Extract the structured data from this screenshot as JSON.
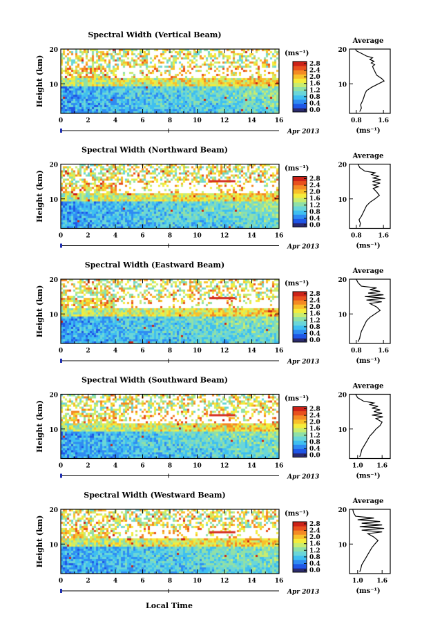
{
  "figure": {
    "x_axis_title": "Local Time",
    "date_label": "Apr 2013"
  },
  "colorbar": {
    "unit": "(ms⁻¹)",
    "tick_labels": [
      "2.8",
      "2.4",
      "2.0",
      "1.6",
      "1.2",
      "0.8",
      "0.4",
      "0.0"
    ],
    "colors": [
      "#2b2b6e",
      "#1f2fb0",
      "#1f57e6",
      "#2f8cf2",
      "#3fbff0",
      "#6ad6d8",
      "#8fe0a8",
      "#c8ec70",
      "#f4ec3c",
      "#f8c02a",
      "#f48a24",
      "#e8501e",
      "#cc2218"
    ]
  },
  "chart_data": [
    {
      "type": "heatmap",
      "title": "Spectral Width (Vertical Beam)",
      "ylabel": "Height (km)",
      "x_ticks": [
        "0",
        "2",
        "4",
        "6",
        "8",
        "10",
        "12",
        "14",
        "16"
      ],
      "y_ticks": [
        "10",
        "20"
      ],
      "xlim": [
        0,
        16
      ],
      "ylim": [
        1.5,
        20
      ],
      "avg": {
        "title": "Average",
        "xlabel": "(ms⁻¹)",
        "x_ticks": [
          "0.8",
          "1.6"
        ],
        "xlim": [
          0.6,
          1.8
        ],
        "y_ticks": [
          "10",
          "20"
        ],
        "profile": [
          [
            0.9,
            2
          ],
          [
            0.95,
            3
          ],
          [
            0.93,
            4
          ],
          [
            0.98,
            5
          ],
          [
            1.02,
            6
          ],
          [
            1.05,
            7
          ],
          [
            1.1,
            8
          ],
          [
            1.25,
            9
          ],
          [
            1.45,
            10
          ],
          [
            1.62,
            10.8
          ],
          [
            1.55,
            11.5
          ],
          [
            1.4,
            12.5
          ],
          [
            1.35,
            13.5
          ],
          [
            1.3,
            14.5
          ],
          [
            1.28,
            15
          ],
          [
            1.34,
            15.5
          ],
          [
            1.24,
            16
          ],
          [
            1.32,
            16.5
          ],
          [
            1.2,
            17
          ],
          [
            1.28,
            17.5
          ],
          [
            1.1,
            18
          ],
          [
            1.0,
            18.5
          ],
          [
            0.9,
            19
          ],
          [
            0.8,
            19.5
          ],
          [
            0.78,
            20
          ]
        ]
      }
    },
    {
      "type": "heatmap",
      "title": "Spectral Width (Northward Beam)",
      "ylabel": "Height (km)",
      "x_ticks": [
        "0",
        "2",
        "4",
        "6",
        "8",
        "10",
        "12",
        "14",
        "16"
      ],
      "y_ticks": [
        "10",
        "20"
      ],
      "xlim": [
        0,
        16
      ],
      "ylim": [
        1.5,
        20
      ],
      "avg": {
        "title": "Average",
        "xlabel": "(ms⁻¹)",
        "x_ticks": [
          "0.8",
          "1.6"
        ],
        "xlim": [
          0.6,
          1.8
        ],
        "y_ticks": [
          "10",
          "20"
        ],
        "profile": [
          [
            0.9,
            2
          ],
          [
            0.92,
            3
          ],
          [
            0.88,
            4
          ],
          [
            0.95,
            5
          ],
          [
            1.0,
            6
          ],
          [
            1.05,
            7
          ],
          [
            1.1,
            8
          ],
          [
            1.2,
            9
          ],
          [
            1.35,
            10
          ],
          [
            1.48,
            11
          ],
          [
            1.4,
            12
          ],
          [
            1.3,
            13
          ],
          [
            1.45,
            13.5
          ],
          [
            1.3,
            14
          ],
          [
            1.5,
            14.5
          ],
          [
            1.28,
            15
          ],
          [
            1.52,
            15.5
          ],
          [
            1.3,
            16
          ],
          [
            1.45,
            16.5
          ],
          [
            1.25,
            17
          ],
          [
            1.35,
            17.5
          ],
          [
            1.05,
            18
          ],
          [
            0.9,
            19
          ],
          [
            0.85,
            20
          ]
        ]
      }
    },
    {
      "type": "heatmap",
      "title": "Spectral Width (Eastward Beam)",
      "ylabel": "Height (km)",
      "x_ticks": [
        "0",
        "2",
        "4",
        "6",
        "8",
        "10",
        "12",
        "14",
        "16"
      ],
      "y_ticks": [
        "10",
        "20"
      ],
      "xlim": [
        0,
        16
      ],
      "ylim": [
        1.5,
        20
      ],
      "avg": {
        "title": "Average",
        "xlabel": "(ms⁻¹)",
        "x_ticks": [
          "0.8",
          "1.6"
        ],
        "xlim": [
          0.6,
          1.8
        ],
        "y_ticks": [
          "10",
          "20"
        ],
        "profile": [
          [
            0.85,
            2
          ],
          [
            0.9,
            3
          ],
          [
            0.92,
            4
          ],
          [
            0.95,
            5
          ],
          [
            1.0,
            6
          ],
          [
            1.05,
            7
          ],
          [
            1.1,
            8
          ],
          [
            1.2,
            9
          ],
          [
            1.35,
            10
          ],
          [
            1.5,
            11
          ],
          [
            1.4,
            12
          ],
          [
            1.2,
            13
          ],
          [
            1.55,
            13.5
          ],
          [
            1.1,
            14
          ],
          [
            1.65,
            14.5
          ],
          [
            1.05,
            15
          ],
          [
            1.6,
            15.5
          ],
          [
            1.15,
            16
          ],
          [
            1.5,
            16.5
          ],
          [
            1.2,
            17
          ],
          [
            1.4,
            17.5
          ],
          [
            0.95,
            18
          ],
          [
            0.85,
            19
          ],
          [
            0.8,
            20
          ]
        ]
      }
    },
    {
      "type": "heatmap",
      "title": "Spectral Width (Southward Beam)",
      "ylabel": "Height (km)",
      "x_ticks": [
        "0",
        "2",
        "4",
        "6",
        "8",
        "10",
        "12",
        "14",
        "16"
      ],
      "y_ticks": [
        "10",
        "20"
      ],
      "xlim": [
        0,
        16
      ],
      "ylim": [
        1.5,
        20
      ],
      "avg": {
        "title": "Average",
        "xlabel": "(ms⁻¹)",
        "x_ticks": [
          "1.0",
          "1.6"
        ],
        "xlim": [
          0.8,
          1.8
        ],
        "y_ticks": [
          "10",
          "20"
        ],
        "profile": [
          [
            1.05,
            2
          ],
          [
            1.08,
            3
          ],
          [
            1.1,
            4
          ],
          [
            1.15,
            5
          ],
          [
            1.2,
            6
          ],
          [
            1.25,
            7
          ],
          [
            1.3,
            8
          ],
          [
            1.38,
            9
          ],
          [
            1.45,
            10
          ],
          [
            1.55,
            11
          ],
          [
            1.6,
            12
          ],
          [
            1.45,
            13
          ],
          [
            1.62,
            13.5
          ],
          [
            1.35,
            14
          ],
          [
            1.6,
            14.5
          ],
          [
            1.4,
            15
          ],
          [
            1.55,
            15.5
          ],
          [
            1.35,
            16
          ],
          [
            1.5,
            16.5
          ],
          [
            1.3,
            17
          ],
          [
            1.4,
            17.5
          ],
          [
            1.15,
            18
          ],
          [
            1.0,
            19
          ],
          [
            0.95,
            20
          ]
        ]
      }
    },
    {
      "type": "heatmap",
      "title": "Spectral Width (Westward Beam)",
      "ylabel": "Height (km)",
      "x_ticks": [
        "0",
        "2",
        "4",
        "6",
        "8",
        "10",
        "12",
        "14",
        "16"
      ],
      "y_ticks": [
        "10",
        "20"
      ],
      "xlim": [
        0,
        16
      ],
      "ylim": [
        1.5,
        20
      ],
      "avg": {
        "title": "Average",
        "xlabel": "(ms⁻¹)",
        "x_ticks": [
          "1.0",
          "1.6"
        ],
        "xlim": [
          0.8,
          1.8
        ],
        "y_ticks": [
          "10",
          "20"
        ],
        "profile": [
          [
            1.05,
            2
          ],
          [
            1.08,
            3
          ],
          [
            1.1,
            4
          ],
          [
            1.15,
            5
          ],
          [
            1.2,
            6
          ],
          [
            1.25,
            7
          ],
          [
            1.3,
            8
          ],
          [
            1.35,
            9
          ],
          [
            1.42,
            10
          ],
          [
            1.5,
            11
          ],
          [
            1.4,
            12
          ],
          [
            1.25,
            13
          ],
          [
            1.6,
            13.5
          ],
          [
            1.1,
            14
          ],
          [
            1.65,
            14.5
          ],
          [
            1.05,
            15
          ],
          [
            1.6,
            15.5
          ],
          [
            1.1,
            16
          ],
          [
            1.55,
            16.5
          ],
          [
            1.0,
            17
          ],
          [
            1.4,
            17.5
          ],
          [
            0.95,
            18
          ],
          [
            0.9,
            19
          ],
          [
            0.88,
            20
          ]
        ]
      }
    }
  ]
}
